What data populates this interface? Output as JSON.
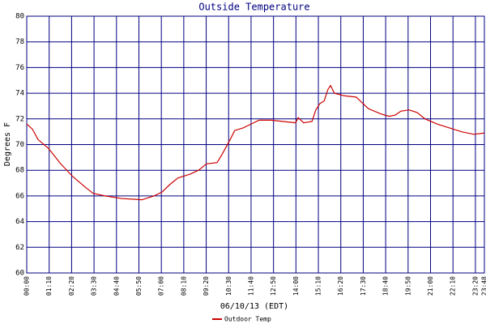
{
  "chart_data": {
    "type": "line",
    "title": "Outside Temperature",
    "x_label": "06/10/13 (EDT)",
    "y_label": "Degrees F",
    "xlim": [
      0,
      1428
    ],
    "ylim": [
      60,
      80
    ],
    "xticks": [
      {
        "value": 0,
        "label": "00:00"
      },
      {
        "value": 70,
        "label": "01:10"
      },
      {
        "value": 140,
        "label": "02:20"
      },
      {
        "value": 210,
        "label": "03:30"
      },
      {
        "value": 280,
        "label": "04:40"
      },
      {
        "value": 350,
        "label": "05:50"
      },
      {
        "value": 420,
        "label": "07:00"
      },
      {
        "value": 490,
        "label": "08:10"
      },
      {
        "value": 560,
        "label": "09:20"
      },
      {
        "value": 630,
        "label": "10:30"
      },
      {
        "value": 700,
        "label": "11:40"
      },
      {
        "value": 770,
        "label": "12:50"
      },
      {
        "value": 840,
        "label": "14:00"
      },
      {
        "value": 910,
        "label": "15:10"
      },
      {
        "value": 980,
        "label": "16:20"
      },
      {
        "value": 1050,
        "label": "17:30"
      },
      {
        "value": 1120,
        "label": "18:40"
      },
      {
        "value": 1190,
        "label": "19:50"
      },
      {
        "value": 1260,
        "label": "21:00"
      },
      {
        "value": 1330,
        "label": "22:10"
      },
      {
        "value": 1400,
        "label": "23:20"
      },
      {
        "value": 1428,
        "label": "23:48"
      }
    ],
    "yticks": [
      60,
      62,
      64,
      66,
      68,
      70,
      72,
      74,
      76,
      78,
      80
    ],
    "grid": true,
    "legend": "bottom",
    "series": [
      {
        "name": "Outdoor Temp",
        "color": "#cc0000",
        "x": [
          0,
          18,
          35,
          68,
          106,
          144,
          182,
          207,
          245,
          296,
          359,
          397,
          422,
          447,
          472,
          510,
          536,
          561,
          594,
          611,
          637,
          649,
          675,
          700,
          725,
          763,
          801,
          839,
          847,
          864,
          890,
          902,
          915,
          928,
          940,
          948,
          960,
          991,
          1028,
          1049,
          1066,
          1104,
          1130,
          1150,
          1167,
          1193,
          1218,
          1243,
          1281,
          1319,
          1357,
          1395,
          1428
        ],
        "values": [
          71.6,
          71.2,
          70.4,
          69.7,
          68.5,
          67.5,
          66.7,
          66.2,
          66.0,
          65.8,
          65.7,
          66.0,
          66.3,
          66.9,
          67.4,
          67.7,
          68.0,
          68.5,
          68.6,
          69.3,
          70.5,
          71.1,
          71.3,
          71.6,
          71.9,
          71.9,
          71.8,
          71.7,
          72.1,
          71.7,
          71.8,
          72.7,
          73.2,
          73.4,
          74.3,
          74.6,
          74.0,
          73.8,
          73.7,
          73.2,
          72.8,
          72.4,
          72.2,
          72.3,
          72.6,
          72.7,
          72.5,
          72.0,
          71.6,
          71.3,
          71.0,
          70.8,
          70.9
        ]
      }
    ]
  }
}
